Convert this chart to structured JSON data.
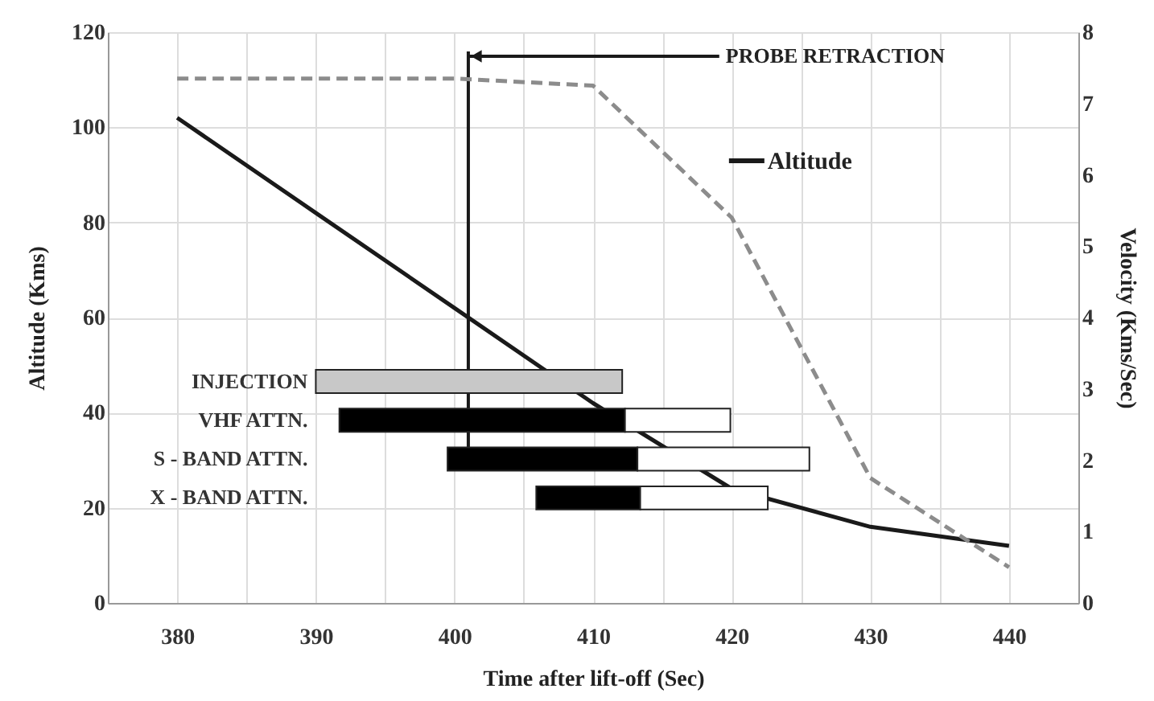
{
  "chart_data": [
    {
      "type": "line",
      "xlabel": "Time after lift-off (Sec)",
      "ylabel": "Altitude (Kms)",
      "y2label": "Velocity (Kms/Sec)",
      "xlim": [
        375,
        445
      ],
      "xticks": [
        380,
        {
          "value": 385,
          "label": null
        },
        390,
        {
          "value": 395,
          "label": null
        },
        400,
        {
          "value": 405,
          "label": null
        },
        410,
        {
          "value": 415,
          "label": null
        },
        420,
        {
          "value": 425,
          "label": null
        },
        430,
        {
          "value": 435,
          "label": null
        },
        440
      ],
      "ylim": [
        0,
        120
      ],
      "yticks": [
        0,
        20,
        40,
        60,
        80,
        100,
        120
      ],
      "y2lim": [
        0,
        8
      ],
      "y2ticks": [
        0,
        1,
        2,
        3,
        4,
        5,
        6,
        7,
        8
      ],
      "grid": true,
      "legend": "top right",
      "series": [
        {
          "name": "Altitude",
          "color": "#1a1a1a",
          "line_style": "solid",
          "x": [
            380,
            390,
            400,
            410,
            420,
            430,
            440
          ],
          "values": [
            102,
            82,
            62,
            42,
            24,
            16,
            12
          ]
        },
        {
          "axis": "y2",
          "color": "#8c8c8c",
          "line_style": "dashed",
          "x": [
            380,
            390,
            400,
            410,
            420,
            430,
            440
          ],
          "values": [
            7.35,
            7.35,
            7.35,
            7.25,
            5.4,
            1.75,
            0.5
          ]
        }
      ],
      "ref_lines": [
        {
          "axis": "x",
          "value": 401,
          "label": "PROBE RETRACTION",
          "color": "#1a1a1a",
          "line_style": "solid"
        }
      ]
    },
    {
      "type": "bar",
      "orientation": "horizontal",
      "categories": [
        "INJECTION",
        "VHF ATTN.",
        "S - BAND ATTN.",
        "X - BAND ATTN."
      ],
      "xlim": [
        375,
        445
      ],
      "tick_labels": false,
      "series": [
        {
          "color": "#c8c8c8",
          "base": [
            390.0,
            null,
            null,
            null
          ],
          "values": [
            22.1,
            null,
            null,
            null
          ]
        },
        {
          "color": "#000000",
          "base": [
            null,
            391.7,
            399.5,
            405.9
          ],
          "values": [
            null,
            20.6,
            13.7,
            7.5
          ]
        },
        {
          "color": "#ffffff",
          "base": [
            null,
            412.3,
            413.2,
            413.4
          ],
          "values": [
            null,
            7.6,
            12.4,
            9.2
          ]
        }
      ]
    }
  ]
}
